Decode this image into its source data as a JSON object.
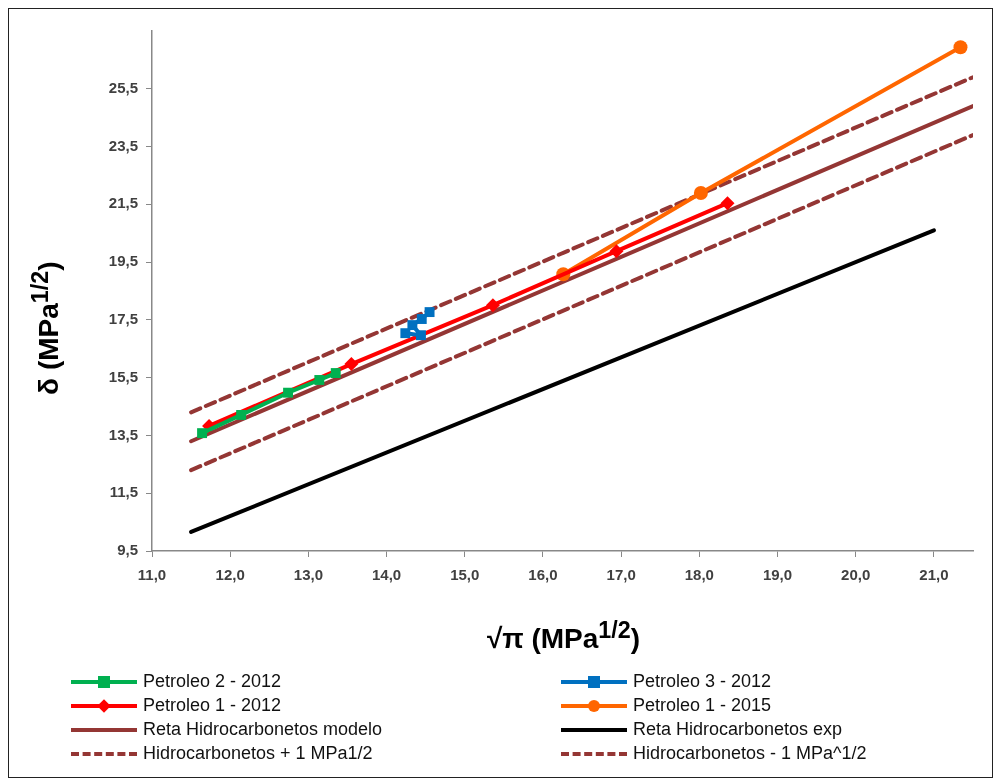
{
  "chart_data": {
    "type": "line",
    "xlabel": "√π (MPa$^{1/2}$)",
    "ylabel": "δ (MPa$^{1/2}$)",
    "xlim": [
      11.0,
      21.5
    ],
    "ylim": [
      9.5,
      27.5
    ],
    "xticks": [
      {
        "value": 11,
        "label": "11,0"
      },
      {
        "value": 12,
        "label": "12,0"
      },
      {
        "value": 13,
        "label": "13,0"
      },
      {
        "value": 14,
        "label": "14,0"
      },
      {
        "value": 15,
        "label": "15,0"
      },
      {
        "value": 16,
        "label": "16,0"
      },
      {
        "value": 17,
        "label": "17,0"
      },
      {
        "value": 18,
        "label": "18,0"
      },
      {
        "value": 19,
        "label": "19,0"
      },
      {
        "value": 20,
        "label": "20,0"
      },
      {
        "value": 21,
        "label": "21,0"
      }
    ],
    "yticks": [
      {
        "value": 9.5,
        "label": "9,5"
      },
      {
        "value": 11.5,
        "label": "11,5"
      },
      {
        "value": 13.5,
        "label": "13,5"
      },
      {
        "value": 15.5,
        "label": "15,5"
      },
      {
        "value": 17.5,
        "label": "17,5"
      },
      {
        "value": 19.5,
        "label": "19,5"
      },
      {
        "value": 21.5,
        "label": "21,5"
      },
      {
        "value": 23.5,
        "label": "23,5"
      },
      {
        "value": 25.5,
        "label": "25,5"
      }
    ],
    "grid": false,
    "legend": "bottom",
    "series": [
      {
        "name": "Petroleo 2 - 2012",
        "color": "#00b050",
        "marker": "square",
        "line_style": "solid",
        "x": [
          11.64,
          12.14,
          12.74,
          13.14,
          13.35
        ],
        "values": [
          13.58,
          14.21,
          14.98,
          15.42,
          15.66
        ]
      },
      {
        "name": "Petroleo 3 - 2012",
        "color": "#0070c0",
        "marker": "square",
        "line_style": "solid",
        "x": [
          14.24,
          14.44,
          14.33,
          14.45,
          14.55
        ],
        "values": [
          17.04,
          16.97,
          17.32,
          17.53,
          17.77
        ]
      },
      {
        "name": "Petroleo 1 - 2012",
        "color": "#ff0000",
        "marker": "diamond",
        "line_style": "solid",
        "x": [
          11.73,
          13.55,
          15.36,
          16.94,
          18.36
        ],
        "values": [
          13.83,
          15.97,
          18.01,
          19.88,
          21.54
        ]
      },
      {
        "name": "Petroleo 1 - 2015",
        "color": "#ff6600",
        "marker": "circle",
        "line_style": "solid",
        "x": [
          16.26,
          18.02,
          21.34
        ],
        "values": [
          19.08,
          21.89,
          26.94
        ]
      },
      {
        "name": "Reta Hidrocarbonetos modelo",
        "color": "#943634",
        "marker": "none",
        "line_style": "solid",
        "x": [
          11.5,
          21.5
        ],
        "values": [
          13.3,
          24.9
        ]
      },
      {
        "name": "Reta Hidrocarbonetos exp",
        "color": "#000000",
        "marker": "none",
        "line_style": "solid",
        "x": [
          11.5,
          21.0
        ],
        "values": [
          10.16,
          20.6
        ]
      },
      {
        "name": "Hidrocarbonetos + 1 MPa1/2",
        "color": "#943634",
        "marker": "none",
        "line_style": "dashed",
        "x": [
          11.5,
          21.5
        ],
        "values": [
          14.3,
          25.9
        ]
      },
      {
        "name": "Hidrocarbonetos - 1 MPa^1/2",
        "color": "#943634",
        "marker": "none",
        "line_style": "dashed",
        "x": [
          11.5,
          21.5
        ],
        "values": [
          12.3,
          23.9
        ]
      }
    ]
  }
}
